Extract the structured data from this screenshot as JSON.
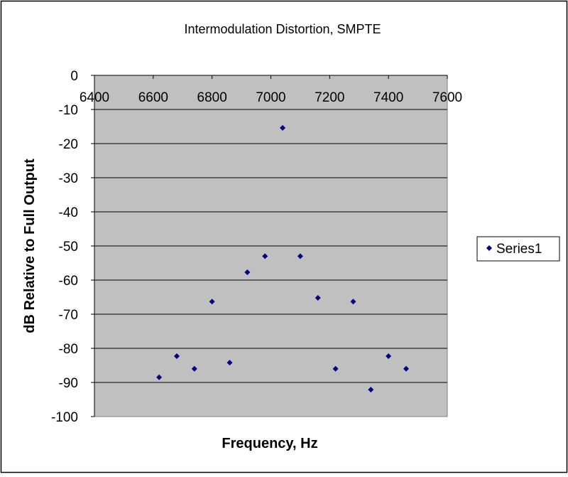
{
  "chart_data": {
    "type": "scatter",
    "title": "Intermodulation Distortion, SMPTE",
    "xlabel": "Frequency, Hz",
    "ylabel": "dB Relative to Full Output",
    "xlim": [
      6400,
      7600
    ],
    "ylim": [
      -100,
      0
    ],
    "x_ticks": [
      "6400",
      "6600",
      "6800",
      "7000",
      "7200",
      "7400",
      "7600"
    ],
    "y_ticks": [
      "0",
      "-10",
      "-20",
      "-30",
      "-40",
      "-50",
      "-60",
      "-70",
      "-80",
      "-90",
      "-100"
    ],
    "x_tick_values": [
      6400,
      6600,
      6800,
      7000,
      7200,
      7400,
      7600
    ],
    "y_tick_values": [
      0,
      -10,
      -20,
      -30,
      -40,
      -50,
      -60,
      -70,
      -80,
      -90,
      -100
    ],
    "grid": true,
    "legend_position": "right",
    "series": [
      {
        "name": "Series1",
        "x": [
          6620,
          6680,
          6740,
          6800,
          6860,
          6920,
          6980,
          7040,
          7100,
          7160,
          7220,
          7280,
          7340,
          7400,
          7460
        ],
        "y": [
          -88.5,
          -82.3,
          -86,
          -66.3,
          -84.2,
          -57.7,
          -53,
          -15.4,
          -53,
          -65.2,
          -86,
          -66.3,
          -92.1,
          -82.3,
          -86
        ]
      }
    ],
    "colors": {
      "plot_background": "#c0c0c0",
      "marker": "#000080",
      "gridline": "#000000"
    },
    "marker_shape": "diamond"
  }
}
